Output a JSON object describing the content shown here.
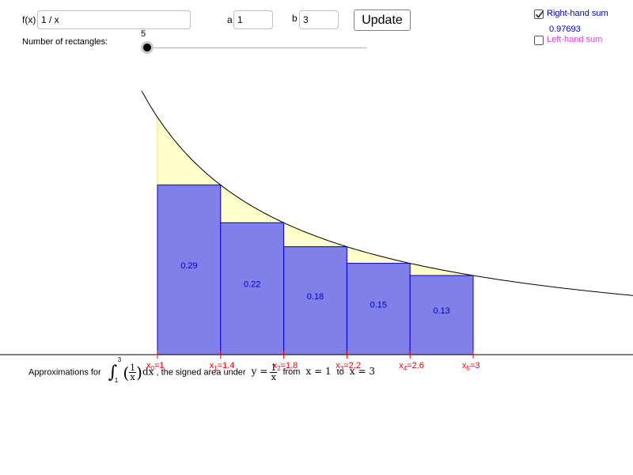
{
  "controls": {
    "fx_label": "f(x)",
    "fx_value": "1 / x",
    "a_label": "a",
    "a_value": "1",
    "b_label": "b",
    "b_value": "3",
    "update_label": "Update",
    "rect_label": "Number of rectangles:",
    "rect_count": "5",
    "right_label": "Right-hand sum",
    "right_checked": true,
    "sum_value": "0.97693",
    "left_label": "Left-hand sum",
    "left_checked": false
  },
  "colors": {
    "rect_fill": "#8080e8",
    "rect_stroke": "#0000cc",
    "area_fill": "#ffffcc",
    "tick": "#ff0000"
  },
  "chart_data": {
    "type": "bar",
    "function": "1 / x",
    "a": 1,
    "b": 3,
    "rectangles": [
      {
        "x0": 1.0,
        "x1": 1.4,
        "label": "0.29"
      },
      {
        "x0": 1.4,
        "x1": 1.8,
        "label": "0.22"
      },
      {
        "x0": 1.8,
        "x1": 2.2,
        "label": "0.18"
      },
      {
        "x0": 2.2,
        "x1": 2.6,
        "label": "0.15"
      },
      {
        "x0": 2.6,
        "x1": 3.0,
        "label": "0.13"
      }
    ],
    "x_ticks": [
      {
        "var": "x",
        "sub": "0",
        "value": "=1"
      },
      {
        "var": "x",
        "sub": "1",
        "value": "=1.4"
      },
      {
        "var": "x",
        "sub": "2",
        "value": "=1.8"
      },
      {
        "var": "x",
        "sub": "3",
        "value": "=2.2"
      },
      {
        "var": "x",
        "sub": "4",
        "value": "=2.6"
      },
      {
        "var": "x",
        "sub": "5",
        "value": "=3"
      }
    ]
  },
  "caption": {
    "prefix": "Approximations for",
    "integral_upper": "3",
    "integral_lower": "1",
    "frac_num": "1",
    "frac_den": "x",
    "dx": "dx",
    "middle": ", the signed area under",
    "y_eq": "y =",
    "from": "from",
    "x_from": "x = 1",
    "to": "to",
    "x_to": "x = 3"
  }
}
